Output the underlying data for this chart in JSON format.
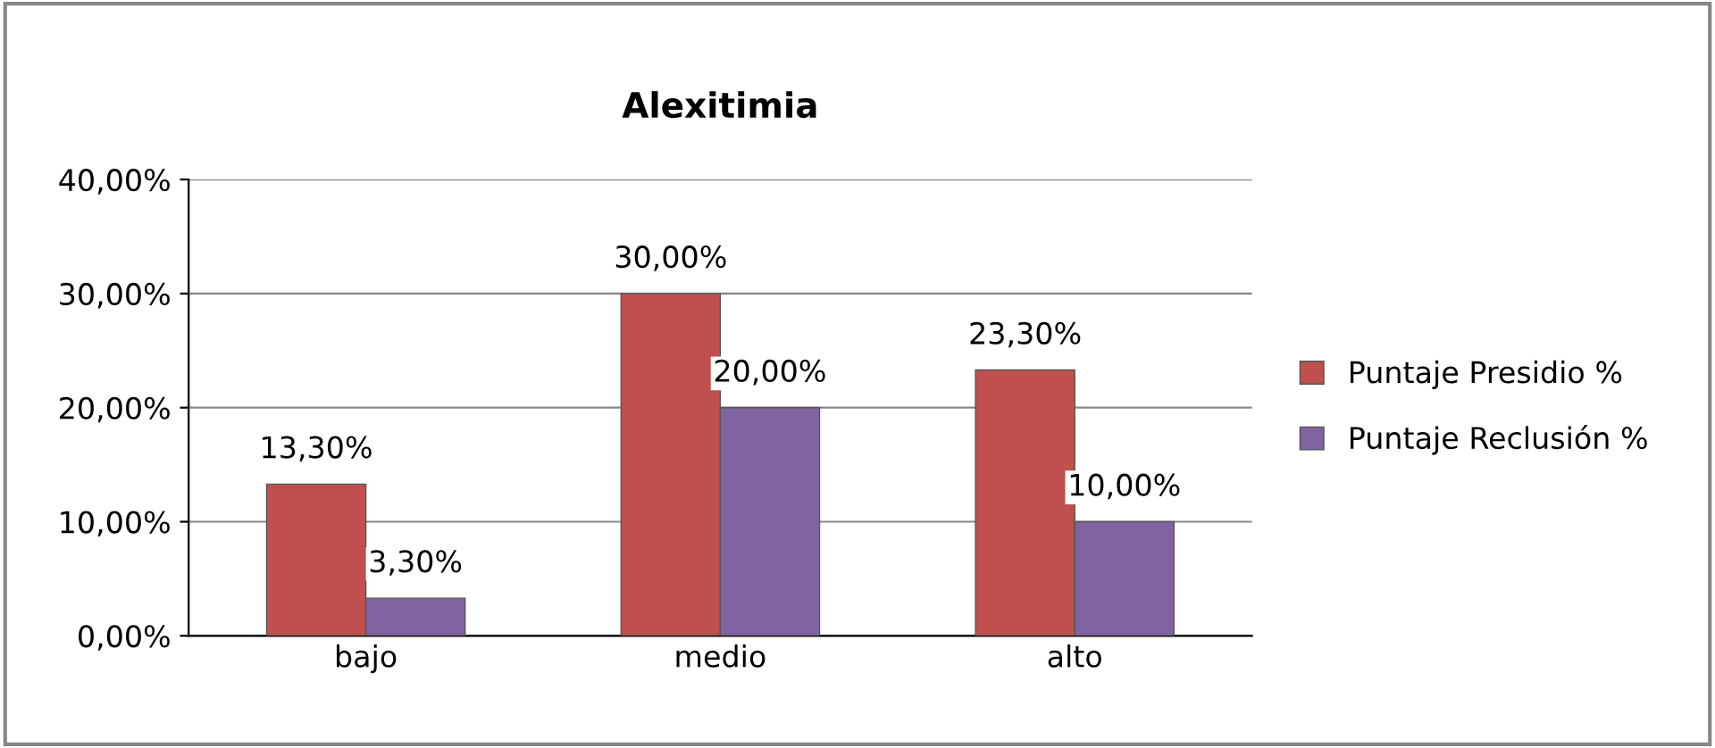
{
  "chart_data": {
    "type": "bar",
    "title": "Alexitimia",
    "categories": [
      "bajo",
      "medio",
      "alto"
    ],
    "series": [
      {
        "name": "Puntaje Presidio %",
        "color": "#c0504d",
        "values": [
          13.3,
          30,
          23.3
        ],
        "value_labels": [
          "13,30%",
          "30,00%",
          "23,30%"
        ]
      },
      {
        "name": "Puntaje Reclusión %",
        "color": "#8064a2",
        "values": [
          3.3,
          20,
          10
        ],
        "value_labels": [
          "3,30%",
          "20,00%",
          "10,00%"
        ]
      }
    ],
    "ylim": [
      0,
      40
    ],
    "yticks": [
      {
        "value": 0,
        "label": "0,00%"
      },
      {
        "value": 10,
        "label": "10,00%"
      },
      {
        "value": 20,
        "label": "20,00%"
      },
      {
        "value": 30,
        "label": "30,00%"
      },
      {
        "value": 40,
        "label": "40,00%"
      }
    ],
    "grid": "y",
    "legend": "right"
  }
}
